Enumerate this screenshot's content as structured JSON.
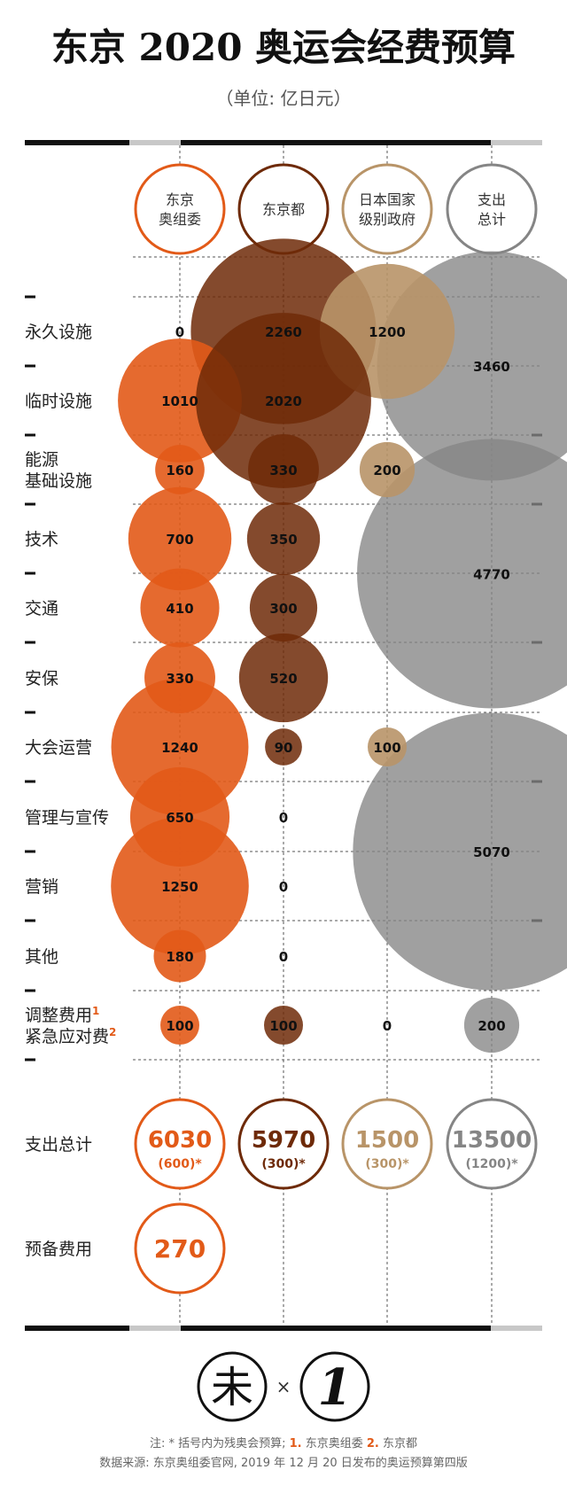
{
  "header": {
    "title": "东京 2020 奥运会经费预算",
    "unit": "（单位: 亿日元）"
  },
  "colors": {
    "tokyo_org": "#e25a18",
    "tokyo_metro": "#6e2a08",
    "national": "#b89468",
    "total": "#858585",
    "dark_bar": "#111111",
    "gray_bar": "#c8c8c8"
  },
  "chart_data": {
    "type": "bubble",
    "columns": [
      {
        "id": "tokyo_org",
        "label_lines": [
          "东京",
          "奥组委"
        ]
      },
      {
        "id": "tokyo_metro",
        "label_lines": [
          "东京都"
        ]
      },
      {
        "id": "national",
        "label_lines": [
          "日本国家",
          "级别政府"
        ]
      },
      {
        "id": "total",
        "label_lines": [
          "支出",
          "总计"
        ]
      }
    ],
    "rows": [
      {
        "label_lines": [
          "永久设施"
        ],
        "values": [
          0,
          2260,
          1200
        ]
      },
      {
        "label_lines": [
          "临时设施"
        ],
        "values": [
          1010,
          2020,
          null
        ]
      },
      {
        "label_lines": [
          "能源",
          "基础设施"
        ],
        "values": [
          160,
          330,
          200
        ]
      },
      {
        "label_lines": [
          "技术"
        ],
        "values": [
          700,
          350,
          null
        ]
      },
      {
        "label_lines": [
          "交通"
        ],
        "values": [
          410,
          300,
          null
        ]
      },
      {
        "label_lines": [
          "安保"
        ],
        "values": [
          330,
          520,
          null
        ]
      },
      {
        "label_lines": [
          "大会运营"
        ],
        "values": [
          1240,
          90,
          100
        ]
      },
      {
        "label_lines": [
          "管理与宣传"
        ],
        "values": [
          650,
          0,
          null
        ]
      },
      {
        "label_lines": [
          "营销"
        ],
        "values": [
          1250,
          0,
          null
        ]
      },
      {
        "label_lines": [
          "其他"
        ],
        "values": [
          180,
          0,
          null
        ]
      },
      {
        "label_lines": [
          "调整费用",
          "紧急应对费"
        ],
        "label_sups": [
          "1",
          "2"
        ],
        "values": [
          100,
          100,
          0
        ]
      }
    ],
    "group_totals": [
      {
        "label": "3460",
        "value": 3460,
        "rows": [
          0,
          1
        ]
      },
      {
        "label": "4770",
        "value": 4770,
        "rows": [
          2,
          5
        ]
      },
      {
        "label": "5070",
        "value": 5070,
        "rows": [
          6,
          9
        ]
      },
      {
        "label": "200",
        "value": 200,
        "rows": [
          10,
          10
        ]
      }
    ],
    "totals_label": "支出总计",
    "totals": [
      {
        "value": "6030",
        "sub": "(600)*"
      },
      {
        "value": "5970",
        "sub": "(300)*"
      },
      {
        "value": "1500",
        "sub": "(300)*"
      },
      {
        "value": "13500",
        "sub": "(1200)*"
      }
    ],
    "reserve": {
      "label": "预备费用",
      "value": "270"
    }
  },
  "footer": {
    "logo_text": "未",
    "times": "×",
    "logo2_text": "1",
    "note_prefix": "注: * 括号内为残奥会预算; ",
    "note_n1": "1.",
    "note_t1": " 东京奥组委 ",
    "note_n2": "2.",
    "note_t2": " 东京都",
    "source": "数据来源: 东京奥组委官网, 2019 年 12 月 20 日发布的奥运预算第四版"
  }
}
